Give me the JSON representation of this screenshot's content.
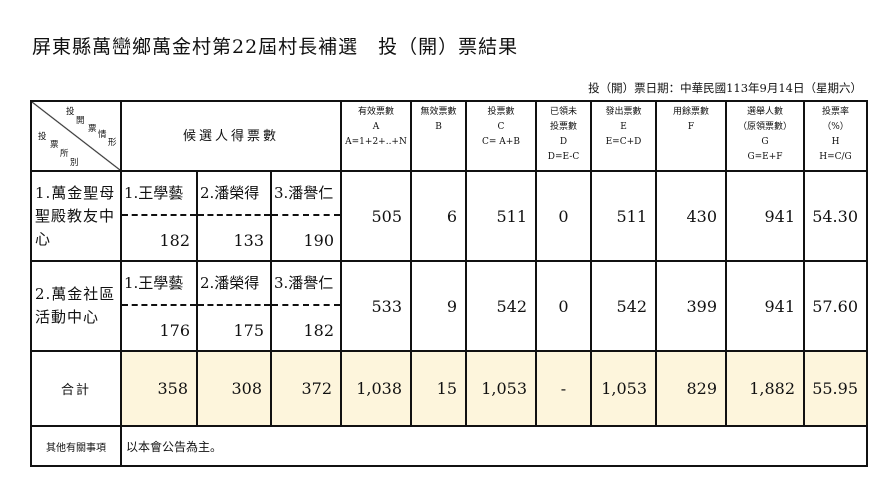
{
  "title": "屏東縣萬巒鄉萬金村第22屆村長補選　投（開）票結果",
  "date": "投（開）票日期：中華民國113年9月14日（星期六）",
  "header": {
    "diag_top": [
      "投",
      "開",
      "票",
      "情",
      "形"
    ],
    "diag_bottom": [
      "投",
      "票",
      "所",
      "別"
    ],
    "candidates": "候選人得票數",
    "cols": [
      [
        "有效票數",
        "A",
        "A=1+2+..+N"
      ],
      [
        "無效票數",
        "B"
      ],
      [
        "投票數",
        "C",
        "C= A+B"
      ],
      [
        "已領未",
        "投票數",
        "D",
        "D=E-C"
      ],
      [
        "發出票數",
        "E",
        "E=C+D"
      ],
      [
        "用餘票數",
        "F"
      ],
      [
        "選舉人數",
        "（原領票數）",
        "G",
        "G=E+F"
      ],
      [
        "投票率",
        "（%）",
        "H",
        "H=C/G"
      ]
    ]
  },
  "rows": [
    {
      "site": "1.萬金聖母聖殿教友中心",
      "candidates": [
        {
          "name": "1.王學藝",
          "votes": "182"
        },
        {
          "name": "2.潘榮得",
          "votes": "133"
        },
        {
          "name": "3.潘譽仁",
          "votes": "190"
        }
      ],
      "values": [
        "505",
        "6",
        "511",
        "0",
        "511",
        "430",
        "941",
        "54.30"
      ]
    },
    {
      "site": "2.萬金社區活動中心",
      "candidates": [
        {
          "name": "1.王學藝",
          "votes": "176"
        },
        {
          "name": "2.潘榮得",
          "votes": "175"
        },
        {
          "name": "3.潘譽仁",
          "votes": "182"
        }
      ],
      "values": [
        "533",
        "9",
        "542",
        "0",
        "542",
        "399",
        "941",
        "57.60"
      ]
    }
  ],
  "total": {
    "label": "合計",
    "candidates": [
      "358",
      "308",
      "372"
    ],
    "values": [
      "1,038",
      "15",
      "1,053",
      "-",
      "1,053",
      "829",
      "1,882",
      "55.95"
    ]
  },
  "note": {
    "label": "其他有關事項",
    "text": "以本會公告為主。"
  },
  "colors": {
    "total_bg": "#fdf5dc"
  }
}
